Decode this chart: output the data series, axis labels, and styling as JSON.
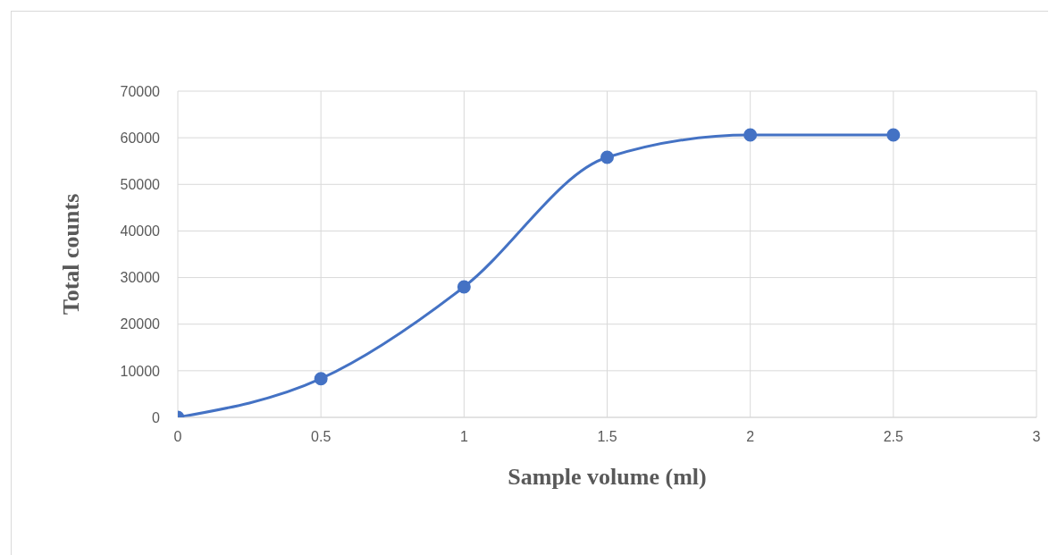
{
  "chart_data": {
    "type": "line",
    "xlabel": "Sample volume (ml)",
    "ylabel": "Total counts",
    "x": [
      0,
      0.5,
      1,
      1.5,
      2,
      2.5
    ],
    "series": [
      {
        "color": "#4472c4",
        "values": [
          0,
          8300,
          28000,
          55800,
          60600,
          60600
        ]
      }
    ],
    "xlim": [
      0,
      3
    ],
    "xticks": [
      0,
      0.5,
      1,
      1.5,
      2,
      2.5,
      3
    ],
    "ylim": [
      0,
      70000
    ],
    "yticks": [
      0,
      10000,
      20000,
      30000,
      40000,
      50000,
      60000,
      70000
    ],
    "grid": true,
    "marker": "circle",
    "line_style": "solid",
    "legend": false
  }
}
